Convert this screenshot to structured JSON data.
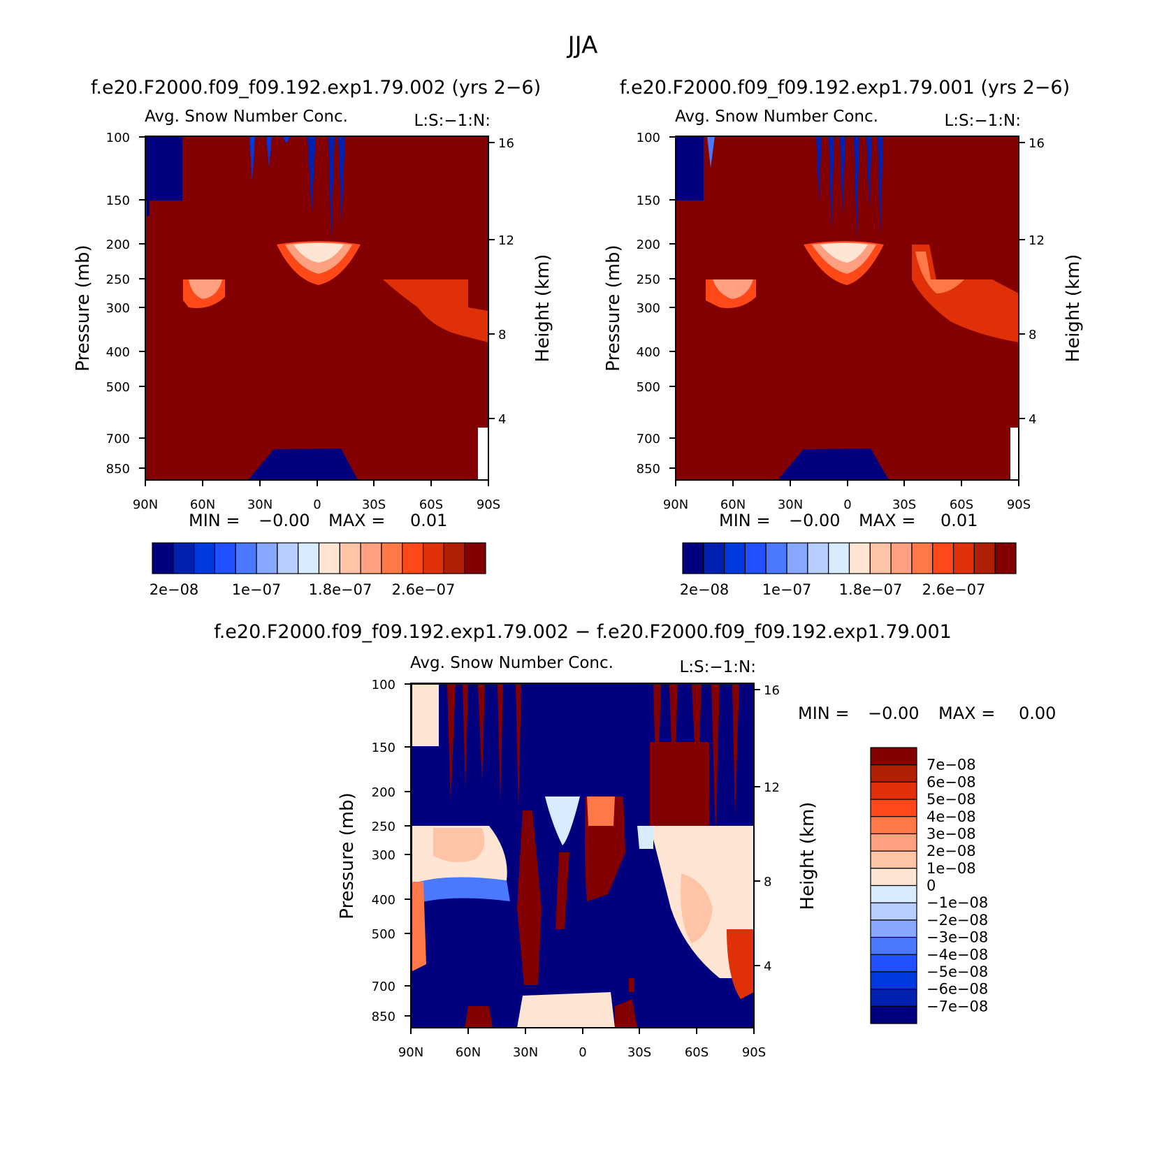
{
  "figure": {
    "title": "JJA"
  },
  "colors": {
    "seq": [
      "#00007f",
      "#0020b0",
      "#0038e0",
      "#2050ff",
      "#4a78ff",
      "#88a8ff",
      "#b6cdff",
      "#d8ecff",
      "#ffe6d4",
      "#ffc4a8",
      "#ffa080",
      "#ff7848",
      "#ff4818",
      "#e03008",
      "#b01e04",
      "#820000"
    ],
    "diff": [
      "#00007f",
      "#0020b0",
      "#0038e0",
      "#2050ff",
      "#4a78ff",
      "#88a8ff",
      "#b6cdff",
      "#d8ecff",
      "#ffe6d4",
      "#ffc4a8",
      "#ffa080",
      "#ff7848",
      "#ff4818",
      "#e03008",
      "#b01e04",
      "#820000"
    ]
  },
  "chart_data": [
    {
      "type": "heatmap",
      "id": "panel-1",
      "header": "f.e20.F2000.f09_f09.192.exp1.79.002 (yrs 2−6)",
      "title": "Avg. Snow Number Conc.",
      "title_right": "L:S:−1:N:",
      "ylabel": "Pressure (mb)",
      "ylabel_right": "Height (km)",
      "x_ticks": [
        "90N",
        "60N",
        "30N",
        "0",
        "30S",
        "60S",
        "90S"
      ],
      "y_ticks": [
        "100",
        "150",
        "200",
        "250",
        "300",
        "400",
        "500",
        "700",
        "850"
      ],
      "y_ticks_right": [
        "16",
        "12",
        "8",
        "4"
      ],
      "stats": {
        "min_label": "MIN =",
        "min": "−0.00",
        "max_label": "MAX =",
        "max": "0.01"
      },
      "legend": {
        "position": "bottom",
        "labels": [
          "2e−08",
          "1e−07",
          "1.8e−07",
          "2.6e−07"
        ]
      }
    },
    {
      "type": "heatmap",
      "id": "panel-2",
      "header": "f.e20.F2000.f09_f09.192.exp1.79.001 (yrs 2−6)",
      "title": "Avg. Snow Number Conc.",
      "title_right": "L:S:−1:N:",
      "ylabel": "Pressure (mb)",
      "ylabel_right": "Height (km)",
      "x_ticks": [
        "90N",
        "60N",
        "30N",
        "0",
        "30S",
        "60S",
        "90S"
      ],
      "y_ticks": [
        "100",
        "150",
        "200",
        "250",
        "300",
        "400",
        "500",
        "700",
        "850"
      ],
      "y_ticks_right": [
        "16",
        "12",
        "8",
        "4"
      ],
      "stats": {
        "min_label": "MIN =",
        "min": "−0.00",
        "max_label": "MAX =",
        "max": "0.01"
      },
      "legend": {
        "position": "bottom",
        "labels": [
          "2e−08",
          "1e−07",
          "1.8e−07",
          "2.6e−07"
        ]
      }
    },
    {
      "type": "heatmap",
      "id": "panel-3",
      "header": "f.e20.F2000.f09_f09.192.exp1.79.002 − f.e20.F2000.f09_f09.192.exp1.79.001",
      "title": "Avg. Snow Number Conc.",
      "title_right": "L:S:−1:N:",
      "ylabel": "Pressure (mb)",
      "ylabel_right": "Height (km)",
      "x_ticks": [
        "90N",
        "60N",
        "30N",
        "0",
        "30S",
        "60S",
        "90S"
      ],
      "y_ticks": [
        "100",
        "150",
        "200",
        "250",
        "300",
        "400",
        "500",
        "700",
        "850"
      ],
      "y_ticks_right": [
        "16",
        "12",
        "8",
        "4"
      ],
      "stats": {
        "min_label": "MIN =",
        "min": "−0.00",
        "max_label": "MAX =",
        "max": "0.00"
      },
      "legend": {
        "position": "right",
        "labels": [
          "7e−08",
          "6e−08",
          "5e−08",
          "4e−08",
          "3e−08",
          "2e−08",
          "1e−08",
          "0",
          "−1e−08",
          "−2e−08",
          "−3e−08",
          "−4e−08",
          "−5e−08",
          "−6e−08",
          "−7e−08"
        ]
      }
    }
  ]
}
